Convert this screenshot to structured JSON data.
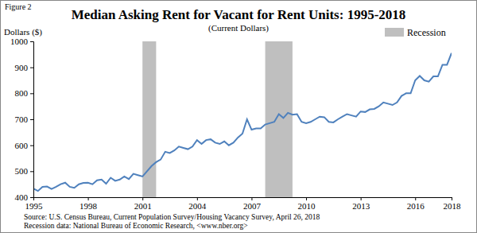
{
  "chart_data": {
    "type": "line",
    "figure_label": "Figure 2",
    "title": "Median Asking Rent for Vacant for Rent Units: 1995-2018",
    "subtitle": "(Current Dollars)",
    "y_label": "Dollars ($)",
    "notes": [
      "Source: U.S. Census Bureau, Current Population Survey/Housing Vacancy Survey, April 26, 2018",
      "Recession data: National Bureau of Economic Research, <www.nber.org>"
    ],
    "color": "#4f81bd",
    "x": [
      1995,
      1995.25,
      1995.5,
      1995.75,
      1996,
      1996.25,
      1996.5,
      1996.75,
      1997,
      1997.25,
      1997.5,
      1997.75,
      1998,
      1998.25,
      1998.5,
      1998.75,
      1999,
      1999.25,
      1999.5,
      1999.75,
      2000,
      2000.25,
      2000.5,
      2000.75,
      2001,
      2001.25,
      2001.5,
      2001.75,
      2002,
      2002.25,
      2002.5,
      2002.75,
      2003,
      2003.25,
      2003.5,
      2003.75,
      2004,
      2004.25,
      2004.5,
      2004.75,
      2005,
      2005.25,
      2005.5,
      2005.75,
      2006,
      2006.25,
      2006.5,
      2006.75,
      2007,
      2007.25,
      2007.5,
      2007.75,
      2008,
      2008.25,
      2008.5,
      2008.75,
      2009,
      2009.25,
      2009.5,
      2009.75,
      2010,
      2010.25,
      2010.5,
      2010.75,
      2011,
      2011.25,
      2011.5,
      2011.75,
      2012,
      2012.25,
      2012.5,
      2012.75,
      2013,
      2013.25,
      2013.5,
      2013.75,
      2014,
      2014.25,
      2014.5,
      2014.75,
      2015,
      2015.25,
      2015.5,
      2015.75,
      2016,
      2016.25,
      2016.5,
      2016.75,
      2017,
      2017.25,
      2017.5,
      2017.75,
      2018
    ],
    "values": [
      433,
      424,
      440,
      441,
      432,
      440,
      450,
      456,
      440,
      436,
      450,
      455,
      456,
      450,
      465,
      468,
      452,
      475,
      463,
      468,
      480,
      470,
      490,
      485,
      480,
      500,
      520,
      535,
      545,
      575,
      570,
      580,
      595,
      590,
      585,
      595,
      620,
      605,
      620,
      623,
      610,
      605,
      615,
      600,
      610,
      630,
      645,
      700,
      660,
      665,
      665,
      680,
      685,
      690,
      720,
      705,
      725,
      718,
      720,
      690,
      685,
      690,
      700,
      710,
      708,
      690,
      688,
      700,
      710,
      720,
      715,
      710,
      730,
      728,
      738,
      740,
      750,
      765,
      760,
      755,
      765,
      790,
      800,
      800,
      850,
      867,
      850,
      845,
      865,
      865,
      910,
      910,
      955
    ],
    "recessions": {
      "name": "Recession",
      "color": "#bfbfbf",
      "ranges": [
        [
          2001.0,
          2001.75
        ],
        [
          2007.75,
          2009.25
        ]
      ]
    },
    "legend": "top-right",
    "grid": false,
    "xlim": [
      1995,
      2018
    ],
    "xticks": [
      1995,
      1998,
      2001,
      2004,
      2007,
      2010,
      2013,
      2016,
      2018
    ],
    "ylim": [
      400,
      1000
    ],
    "yticks": [
      400,
      500,
      600,
      700,
      800,
      900,
      1000
    ]
  }
}
